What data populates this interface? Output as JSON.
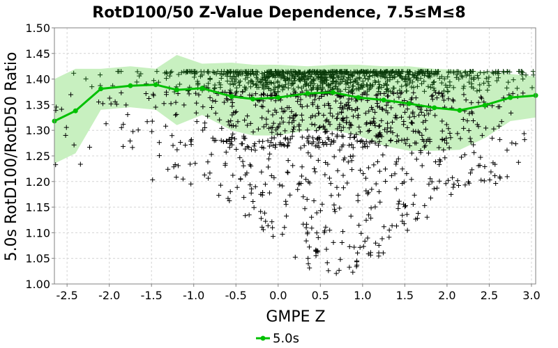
{
  "chart_data": {
    "type": "scatter",
    "title": "RotD100/50 Z-Value Dependence, 7.5≤M≤8",
    "xlabel": "GMPE Z",
    "ylabel": "5.0s RotD100/RotD50 Ratio",
    "xlim": [
      -2.65,
      3.05
    ],
    "ylim": [
      1.0,
      1.5
    ],
    "xticks": [
      "-2.5",
      "-2.0",
      "-1.5",
      "-1.0",
      "-0.5",
      "0.0",
      "0.5",
      "1.0",
      "1.5",
      "2.0",
      "2.5",
      "3.0"
    ],
    "yticks": [
      "1.00",
      "1.05",
      "1.10",
      "1.15",
      "1.20",
      "1.25",
      "1.30",
      "1.35",
      "1.40",
      "1.45",
      "1.50"
    ],
    "grid": true,
    "legend": "bottom-center",
    "colors": {
      "line": "#00c000",
      "band": "#c8f0c0",
      "points": "#000000",
      "dense_points": "#0a3a0a"
    },
    "series": [
      {
        "name": "5.0s",
        "type": "line",
        "x": [
          -2.65,
          -2.4,
          -2.1,
          -1.75,
          -1.45,
          -1.2,
          -0.9,
          -0.55,
          -0.3,
          0.0,
          0.35,
          0.65,
          0.95,
          1.25,
          1.55,
          1.85,
          2.15,
          2.45,
          2.75,
          3.05
        ],
        "y": [
          1.318,
          1.338,
          1.381,
          1.387,
          1.389,
          1.379,
          1.382,
          1.366,
          1.361,
          1.364,
          1.372,
          1.374,
          1.364,
          1.359,
          1.352,
          1.344,
          1.339,
          1.349,
          1.364,
          1.368
        ]
      }
    ],
    "band": {
      "x": [
        -2.65,
        -2.4,
        -2.1,
        -1.75,
        -1.45,
        -1.2,
        -0.9,
        -0.55,
        -0.3,
        0.0,
        0.35,
        0.65,
        0.95,
        1.25,
        1.55,
        1.85,
        2.15,
        2.45,
        2.75,
        3.05
      ],
      "upper": [
        1.4,
        1.42,
        1.42,
        1.425,
        1.42,
        1.447,
        1.43,
        1.432,
        1.428,
        1.428,
        1.425,
        1.428,
        1.428,
        1.425,
        1.425,
        1.42,
        1.418,
        1.415,
        1.41,
        1.405
      ],
      "lower": [
        1.235,
        1.255,
        1.34,
        1.345,
        1.34,
        1.31,
        1.33,
        1.3,
        1.29,
        1.29,
        1.3,
        1.3,
        1.29,
        1.27,
        1.26,
        1.26,
        1.262,
        1.285,
        1.318,
        1.325
      ]
    },
    "scatter": {
      "point_count": 1800,
      "upper_cap": 1.415,
      "x_center": 0.7,
      "x_spread": 0.95,
      "tail_min": 1.02
    }
  }
}
